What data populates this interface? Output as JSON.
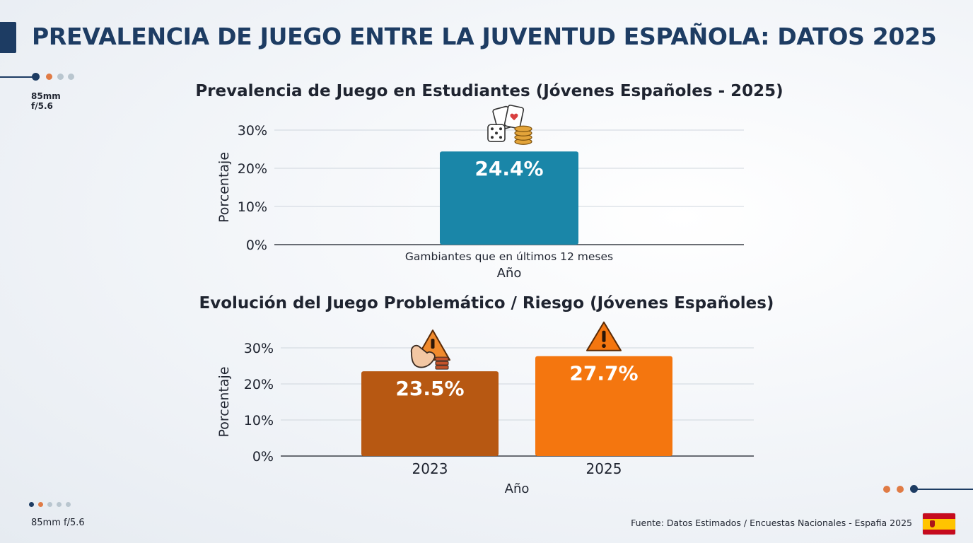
{
  "header": {
    "title": "PREVALENCIA DE JUEGO ENTRE LA JUVENTUD ESPAÑOLA: DATOS 2025"
  },
  "camera": {
    "focal": "85mm",
    "aperture": "f/5.6",
    "bottom_label": "85mm f/5.6"
  },
  "footer": {
    "source": "Fuente: Datos Estimados / Encuestas Nacionales - Espafia 2025"
  },
  "colors": {
    "primary": "#1d3c63",
    "teal": "#1a86a8",
    "brown": "#b75812",
    "orange": "#f4760f",
    "dot_orange": "#e07b45",
    "dot_grey": "#b9c6cf"
  },
  "chart_data": [
    {
      "type": "bar",
      "title": "Prevalencia de Juego en Estudiantes (Jóvenes Españoles - 2025)",
      "categories": [
        "Gambiantes que en últimos 12 meses"
      ],
      "values": [
        24.4
      ],
      "value_labels": [
        "24.4%"
      ],
      "xlabel": "Año",
      "ylabel": "Porcentaje",
      "yticks": [
        "0%",
        "10%",
        "20%",
        "30%"
      ],
      "ylim": [
        0,
        30
      ],
      "grid": true,
      "icons": [
        "dice-cards-coins-icon"
      ]
    },
    {
      "type": "bar",
      "title": "Evolución del Juego Problemático / Riesgo (Jóvenes Españoles)",
      "categories": [
        "2023",
        "2025"
      ],
      "values": [
        23.5,
        27.7
      ],
      "value_labels": [
        "23.5%",
        "27.7%"
      ],
      "xlabel": "Año",
      "ylabel": "Porcentaje",
      "yticks": [
        "0%",
        "10%",
        "20%",
        "30%"
      ],
      "ylim": [
        0,
        30
      ],
      "grid": true,
      "icons": [
        "warning-hand-icon",
        "warning-icon"
      ]
    }
  ]
}
